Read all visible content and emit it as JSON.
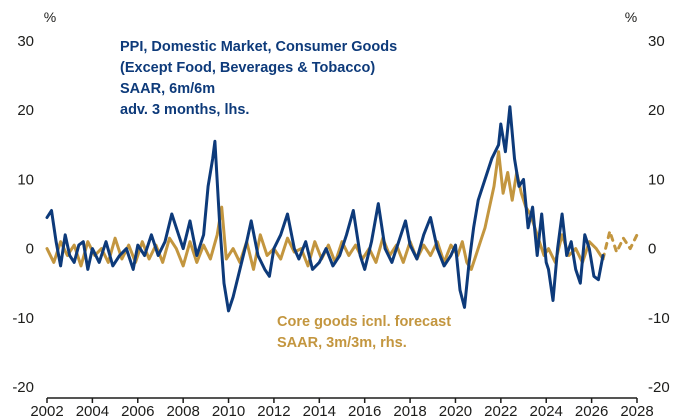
{
  "chart_data": {
    "type": "line",
    "title": "",
    "xlabel": "",
    "ylabel_left": "%",
    "ylabel_right": "%",
    "xlim": [
      2002,
      2028
    ],
    "ylim": [
      -20,
      30
    ],
    "grid": false,
    "x_ticks": [
      "2002",
      "2004",
      "2006",
      "2008",
      "2010",
      "2012",
      "2014",
      "2016",
      "2018",
      "2020",
      "2022",
      "2024",
      "2026",
      "2028"
    ],
    "y_ticks": [
      "-20",
      "-10",
      "0",
      "10",
      "20",
      "30"
    ],
    "colors": {
      "ppi": "#0d3a7a",
      "core": "#c3963f",
      "axis": "#1d1d1b"
    },
    "annotations": {
      "ppi": [
        "PPI, Domestic Market, Consumer Goods",
        "(Except Food, Beverages & Tobacco)",
        "SAAR, 6m/6m",
        "adv. 3 months, lhs."
      ],
      "core": [
        "Core goods icnl. forecast",
        "SAAR, 3m/3m, rhs."
      ]
    },
    "series": [
      {
        "key": "ppi",
        "x": [
          2002.0,
          2002.2,
          2002.4,
          2002.6,
          2002.8,
          2003.0,
          2003.2,
          2003.4,
          2003.6,
          2003.8,
          2004.0,
          2004.3,
          2004.6,
          2004.9,
          2005.2,
          2005.5,
          2005.8,
          2006.0,
          2006.3,
          2006.6,
          2006.9,
          2007.2,
          2007.5,
          2007.8,
          2008.0,
          2008.3,
          2008.6,
          2008.9,
          2009.1,
          2009.3,
          2009.4,
          2009.6,
          2009.8,
          2010.0,
          2010.2,
          2010.5,
          2010.8,
          2011.0,
          2011.3,
          2011.6,
          2011.8,
          2012.0,
          2012.3,
          2012.6,
          2012.9,
          2013.1,
          2013.4,
          2013.7,
          2014.0,
          2014.3,
          2014.6,
          2014.9,
          2015.2,
          2015.5,
          2015.8,
          2016.0,
          2016.3,
          2016.6,
          2016.9,
          2017.2,
          2017.5,
          2017.8,
          2018.0,
          2018.3,
          2018.6,
          2018.9,
          2019.2,
          2019.5,
          2019.8,
          2020.0,
          2020.2,
          2020.4,
          2020.6,
          2020.8,
          2021.0,
          2021.3,
          2021.6,
          2021.9,
          2022.0,
          2022.2,
          2022.4,
          2022.6,
          2022.8,
          2023.0,
          2023.2,
          2023.4,
          2023.6,
          2023.8,
          2024.0,
          2024.1,
          2024.3,
          2024.5,
          2024.7,
          2024.9,
          2025.1,
          2025.3,
          2025.5,
          2025.7,
          2025.9,
          2026.1,
          2026.3,
          2026.5
        ],
        "y": [
          4.5,
          5.5,
          1.0,
          -2.5,
          2.0,
          -1.0,
          -2.0,
          0.5,
          1.0,
          -3.0,
          0.0,
          -2.0,
          1.0,
          -2.5,
          -1.0,
          0.0,
          -3.0,
          0.5,
          -1.0,
          2.0,
          -1.0,
          1.0,
          5.0,
          2.0,
          0.0,
          4.0,
          -1.0,
          2.0,
          9.0,
          13.0,
          15.5,
          4.0,
          -5.0,
          -9.0,
          -7.0,
          -3.0,
          1.0,
          4.0,
          -1.0,
          -3.0,
          -4.0,
          0.0,
          2.0,
          5.0,
          0.0,
          -1.5,
          1.0,
          -3.0,
          -2.0,
          0.0,
          -2.5,
          -1.0,
          2.0,
          5.5,
          -1.0,
          -3.0,
          1.0,
          6.5,
          0.0,
          -2.0,
          1.0,
          4.0,
          0.5,
          -1.5,
          2.0,
          4.5,
          0.0,
          -2.5,
          -1.0,
          0.5,
          -6.0,
          -8.5,
          -2.0,
          3.0,
          7.0,
          10.0,
          13.0,
          15.0,
          18.0,
          14.0,
          20.5,
          13.0,
          9.0,
          10.0,
          3.0,
          6.0,
          -1.0,
          5.0,
          -2.0,
          -3.0,
          -7.5,
          0.0,
          5.0,
          -1.0,
          1.0,
          -3.0,
          -5.0,
          2.0,
          0.0,
          -4.0,
          -4.5,
          -1.0
        ]
      },
      {
        "key": "core",
        "x": [
          2002.0,
          2002.3,
          2002.6,
          2002.9,
          2003.2,
          2003.5,
          2003.8,
          2004.1,
          2004.4,
          2004.7,
          2005.0,
          2005.3,
          2005.6,
          2005.9,
          2006.2,
          2006.5,
          2006.8,
          2007.1,
          2007.4,
          2007.7,
          2008.0,
          2008.3,
          2008.6,
          2008.9,
          2009.2,
          2009.5,
          2009.7,
          2009.9,
          2010.2,
          2010.5,
          2010.8,
          2011.1,
          2011.4,
          2011.7,
          2012.0,
          2012.3,
          2012.6,
          2012.9,
          2013.2,
          2013.5,
          2013.8,
          2014.1,
          2014.4,
          2014.7,
          2015.0,
          2015.3,
          2015.6,
          2015.9,
          2016.2,
          2016.5,
          2016.8,
          2017.1,
          2017.4,
          2017.7,
          2018.0,
          2018.3,
          2018.6,
          2018.9,
          2019.2,
          2019.5,
          2019.8,
          2020.1,
          2020.3,
          2020.5,
          2020.7,
          2020.9,
          2021.1,
          2021.3,
          2021.5,
          2021.7,
          2021.9,
          2022.1,
          2022.3,
          2022.5,
          2022.7,
          2022.9,
          2023.1,
          2023.3,
          2023.5,
          2023.7,
          2023.9,
          2024.1,
          2024.4,
          2024.7,
          2025.0,
          2025.3,
          2025.6,
          2025.9,
          2026.2,
          2026.5
        ],
        "y": [
          0.0,
          -2.0,
          1.0,
          -1.0,
          0.5,
          -2.5,
          1.0,
          -1.0,
          0.0,
          -2.0,
          1.5,
          -1.5,
          0.5,
          -2.0,
          1.0,
          -1.5,
          0.5,
          -2.0,
          1.5,
          0.0,
          -2.5,
          1.0,
          -2.0,
          0.5,
          -1.5,
          2.0,
          6.0,
          -1.5,
          0.0,
          -2.0,
          1.0,
          -3.0,
          2.0,
          -1.0,
          0.0,
          -1.5,
          1.5,
          -0.5,
          0.0,
          -2.5,
          1.0,
          -1.5,
          0.5,
          -2.0,
          1.0,
          -1.0,
          0.5,
          -1.5,
          0.0,
          -2.0,
          1.5,
          -1.0,
          0.5,
          -2.0,
          1.0,
          -1.5,
          0.5,
          -1.0,
          1.0,
          -2.0,
          0.5,
          -1.0,
          1.0,
          -2.0,
          -3.0,
          -1.0,
          1.0,
          3.0,
          6.0,
          9.0,
          14.0,
          8.0,
          11.0,
          7.0,
          11.0,
          8.0,
          6.0,
          5.0,
          3.0,
          1.0,
          -1.0,
          0.0,
          -2.0,
          2.0,
          -1.0,
          0.0,
          -2.0,
          1.0,
          0.0,
          -1.5
        ]
      },
      {
        "key": "core_forecast",
        "x": [
          2026.5,
          2026.8,
          2027.1,
          2027.4,
          2027.7,
          2028.0
        ],
        "y": [
          -1.5,
          2.5,
          -0.5,
          1.5,
          0.0,
          2.0
        ]
      }
    ]
  }
}
